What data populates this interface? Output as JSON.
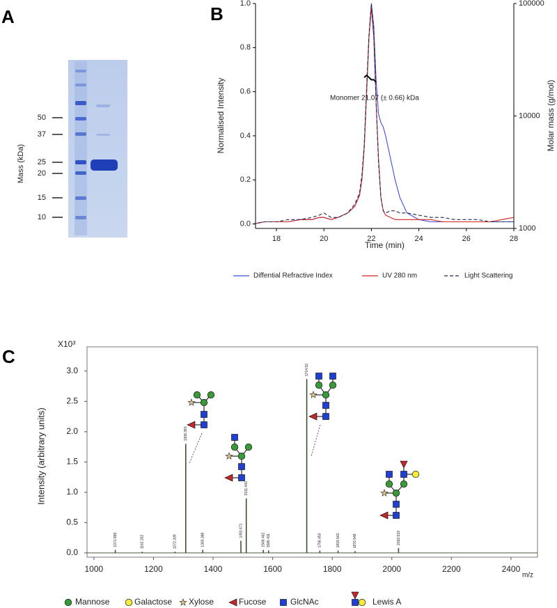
{
  "gel": {
    "panel": "A",
    "ylabel": "Mass (kDa)",
    "markers": [
      50,
      37,
      25,
      20,
      15,
      10
    ]
  },
  "chart_data": [
    {
      "type": "line",
      "panel": "B",
      "xlabel": "Time (min)",
      "ylabel": "Normalised Intensity",
      "y2label": "Molar mass (g/mol)",
      "annotation": "Monomer 21.07 (± 0.66) kDa",
      "xlim": [
        17.12,
        28
      ],
      "xticks": [
        18,
        20,
        22,
        24,
        26,
        28
      ],
      "ylim": [
        -0.02,
        1.0
      ],
      "yticks": [
        {
          "value": 0,
          "label": "0.0"
        },
        0.2,
        0.4,
        0.6,
        0.8,
        {
          "value": 1,
          "label": "1.0"
        }
      ],
      "y2lim": [
        1000,
        100000
      ],
      "y2ticks": [
        1000,
        10000,
        100000
      ],
      "y2scale": "log",
      "x": [
        17,
        17.5,
        18,
        18.5,
        19,
        19.5,
        19.8,
        20,
        20.3,
        20.6,
        21,
        21.3,
        21.5,
        21.6,
        21.7,
        21.8,
        21.9,
        22,
        22.1,
        22.2,
        22.3,
        22.4,
        22.5,
        22.6,
        22.8,
        23,
        23.2,
        23.5,
        24,
        24.5,
        25,
        25.5,
        26,
        26.5,
        27,
        27.5,
        28
      ],
      "series": [
        {
          "name": "Diffential Refractive Index",
          "color": "#3b4fd8",
          "dash": false,
          "values": [
            0.0,
            0.01,
            0.01,
            0.01,
            0.02,
            0.02,
            0.03,
            0.03,
            0.02,
            0.03,
            0.05,
            0.08,
            0.13,
            0.2,
            0.35,
            0.6,
            0.85,
            1.0,
            0.9,
            0.65,
            0.5,
            0.46,
            0.44,
            0.4,
            0.3,
            0.2,
            0.12,
            0.05,
            0.02,
            0.01,
            0.01,
            0.01,
            0.01,
            0.01,
            0.01,
            0.01,
            0.01
          ]
        },
        {
          "name": "UV 280 nm",
          "color": "#d8201f",
          "dash": false,
          "values": [
            0.0,
            0.01,
            0.01,
            0.01,
            0.02,
            0.02,
            0.03,
            0.03,
            0.02,
            0.03,
            0.05,
            0.08,
            0.13,
            0.2,
            0.35,
            0.6,
            0.85,
            0.98,
            0.85,
            0.55,
            0.3,
            0.12,
            0.06,
            0.04,
            0.03,
            0.02,
            0.02,
            0.02,
            0.02,
            0.02,
            0.01,
            0.01,
            0.01,
            0.01,
            0.01,
            0.02,
            0.03
          ]
        },
        {
          "name": "Light Scattering",
          "color": "#1a2a4a",
          "dash": true,
          "values": [
            0.0,
            0.01,
            0.01,
            0.02,
            0.02,
            0.03,
            0.04,
            0.05,
            0.03,
            0.03,
            0.05,
            0.09,
            0.14,
            0.22,
            0.36,
            0.62,
            0.86,
            1.0,
            0.86,
            0.55,
            0.28,
            0.12,
            0.06,
            0.05,
            0.06,
            0.06,
            0.05,
            0.05,
            0.04,
            0.03,
            0.03,
            0.02,
            0.02,
            0.02,
            0.01,
            0.01,
            0.01
          ]
        },
        {
          "color": "#000000",
          "dash": false,
          "axis": "y2",
          "values": [
            null,
            null,
            null,
            null,
            null,
            null,
            null,
            null,
            null,
            null,
            null,
            null,
            null,
            null,
            22000,
            23000,
            22000,
            21000,
            21000,
            20000,
            null,
            null,
            null,
            null,
            null,
            null,
            null,
            null,
            null,
            null,
            null,
            null,
            null,
            null,
            null,
            null,
            null
          ]
        }
      ]
    },
    {
      "type": "spectrum",
      "panel": "C",
      "xlabel": "m/z",
      "ylabel": "Intensity (arbitrary units)",
      "multiplier": "X10³",
      "xlim": [
        977,
        2489
      ],
      "xticks": [
        1000,
        1200,
        1400,
        1600,
        1800,
        2000,
        2200,
        2400
      ],
      "ylim": [
        -0.07,
        3.4
      ],
      "yticks": [
        {
          "value": 0,
          "label": "0.0"
        },
        0.5,
        {
          "value": 1,
          "label": "1.0"
        },
        1.5,
        {
          "value": 2,
          "label": "2.0"
        },
        2.5,
        {
          "value": 3,
          "label": "3.0"
        }
      ],
      "color": "#2d4a1e",
      "x": [
        1071.899,
        1162.332,
        1272.339,
        1308.383,
        1365.388,
        1493.471,
        1511.443,
        1568.462,
        1586.411,
        1714.52,
        1758.453,
        1819.543,
        1876.548,
        2022.619
      ],
      "values": [
        0.05,
        0.02,
        0.02,
        1.8,
        0.05,
        0.2,
        0.9,
        0.05,
        0.04,
        2.87,
        0.04,
        0.04,
        0.03,
        0.08
      ]
    }
  ],
  "glycan_legend": [
    "Mannose",
    "Galactose",
    "Xylose",
    "Fucose",
    "GlcNAc",
    "Lewis A"
  ]
}
